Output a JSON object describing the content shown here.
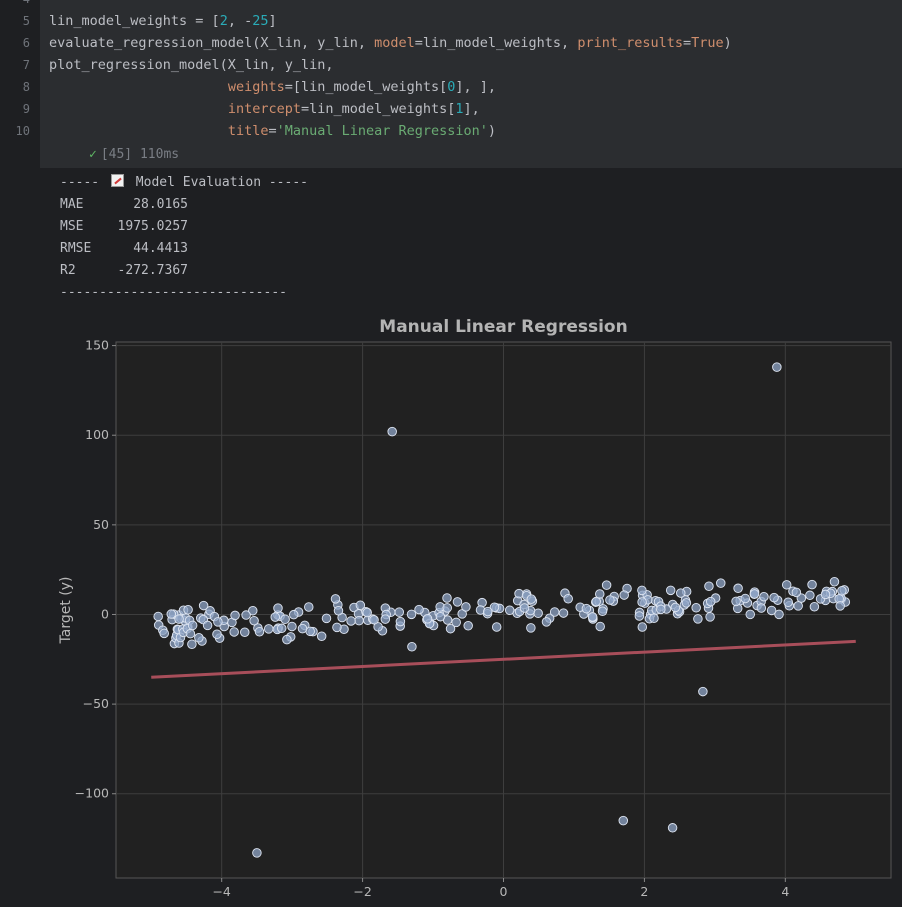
{
  "code": {
    "lines": [
      {
        "n": "5",
        "text": "lin_model_weights = [2, -25]"
      },
      {
        "n": "6",
        "text": "evaluate_regression_model(X_lin, y_lin, model=lin_model_weights, print_results=True)"
      },
      {
        "n": "7",
        "text": "plot_regression_model(X_lin, y_lin,"
      },
      {
        "n": "8",
        "text": "                      weights=[lin_model_weights[0], ],"
      },
      {
        "n": "9",
        "text": "                      intercept=lin_model_weights[1],"
      },
      {
        "n": "10",
        "text": "                      title='Manual Linear Regression')"
      }
    ],
    "status": "[45] 110ms"
  },
  "output": {
    "header_left": "----- ",
    "header_right": " Model Evaluation -----",
    "metrics": [
      {
        "label": "MAE",
        "value": "28.0165"
      },
      {
        "label": "MSE",
        "value": "1975.0257"
      },
      {
        "label": "RMSE",
        "value": "44.4413"
      },
      {
        "label": "R2",
        "value": "-272.7367"
      }
    ],
    "footer": "-----------------------------"
  },
  "chart_data": {
    "type": "scatter",
    "title": "Manual Linear Regression",
    "xlabel": "",
    "ylabel": "Target (y)",
    "xlim": [
      -5.5,
      5.5
    ],
    "ylim": [
      -147,
      152
    ],
    "xticks": [
      -4,
      -2,
      0,
      2,
      4
    ],
    "yticks": [
      -100,
      -50,
      0,
      50,
      100,
      150
    ],
    "xtick_labels": [
      "−4",
      "−2",
      "0",
      "2",
      "4"
    ],
    "ytick_labels": [
      "−100",
      "−50",
      "0",
      "50",
      "100",
      "150"
    ],
    "grid": true,
    "line": {
      "slope": 2,
      "intercept": -25,
      "x_range": [
        -5,
        5
      ],
      "color": "#a84e5a"
    },
    "point_color": "#8ea3c4",
    "outliers": [
      [
        -1.58,
        102
      ],
      [
        3.88,
        138
      ],
      [
        -3.5,
        -133
      ],
      [
        1.7,
        -115
      ],
      [
        2.4,
        -119
      ],
      [
        2.83,
        -43
      ],
      [
        -1.3,
        -18
      ],
      [
        1.97,
        -7
      ]
    ]
  }
}
